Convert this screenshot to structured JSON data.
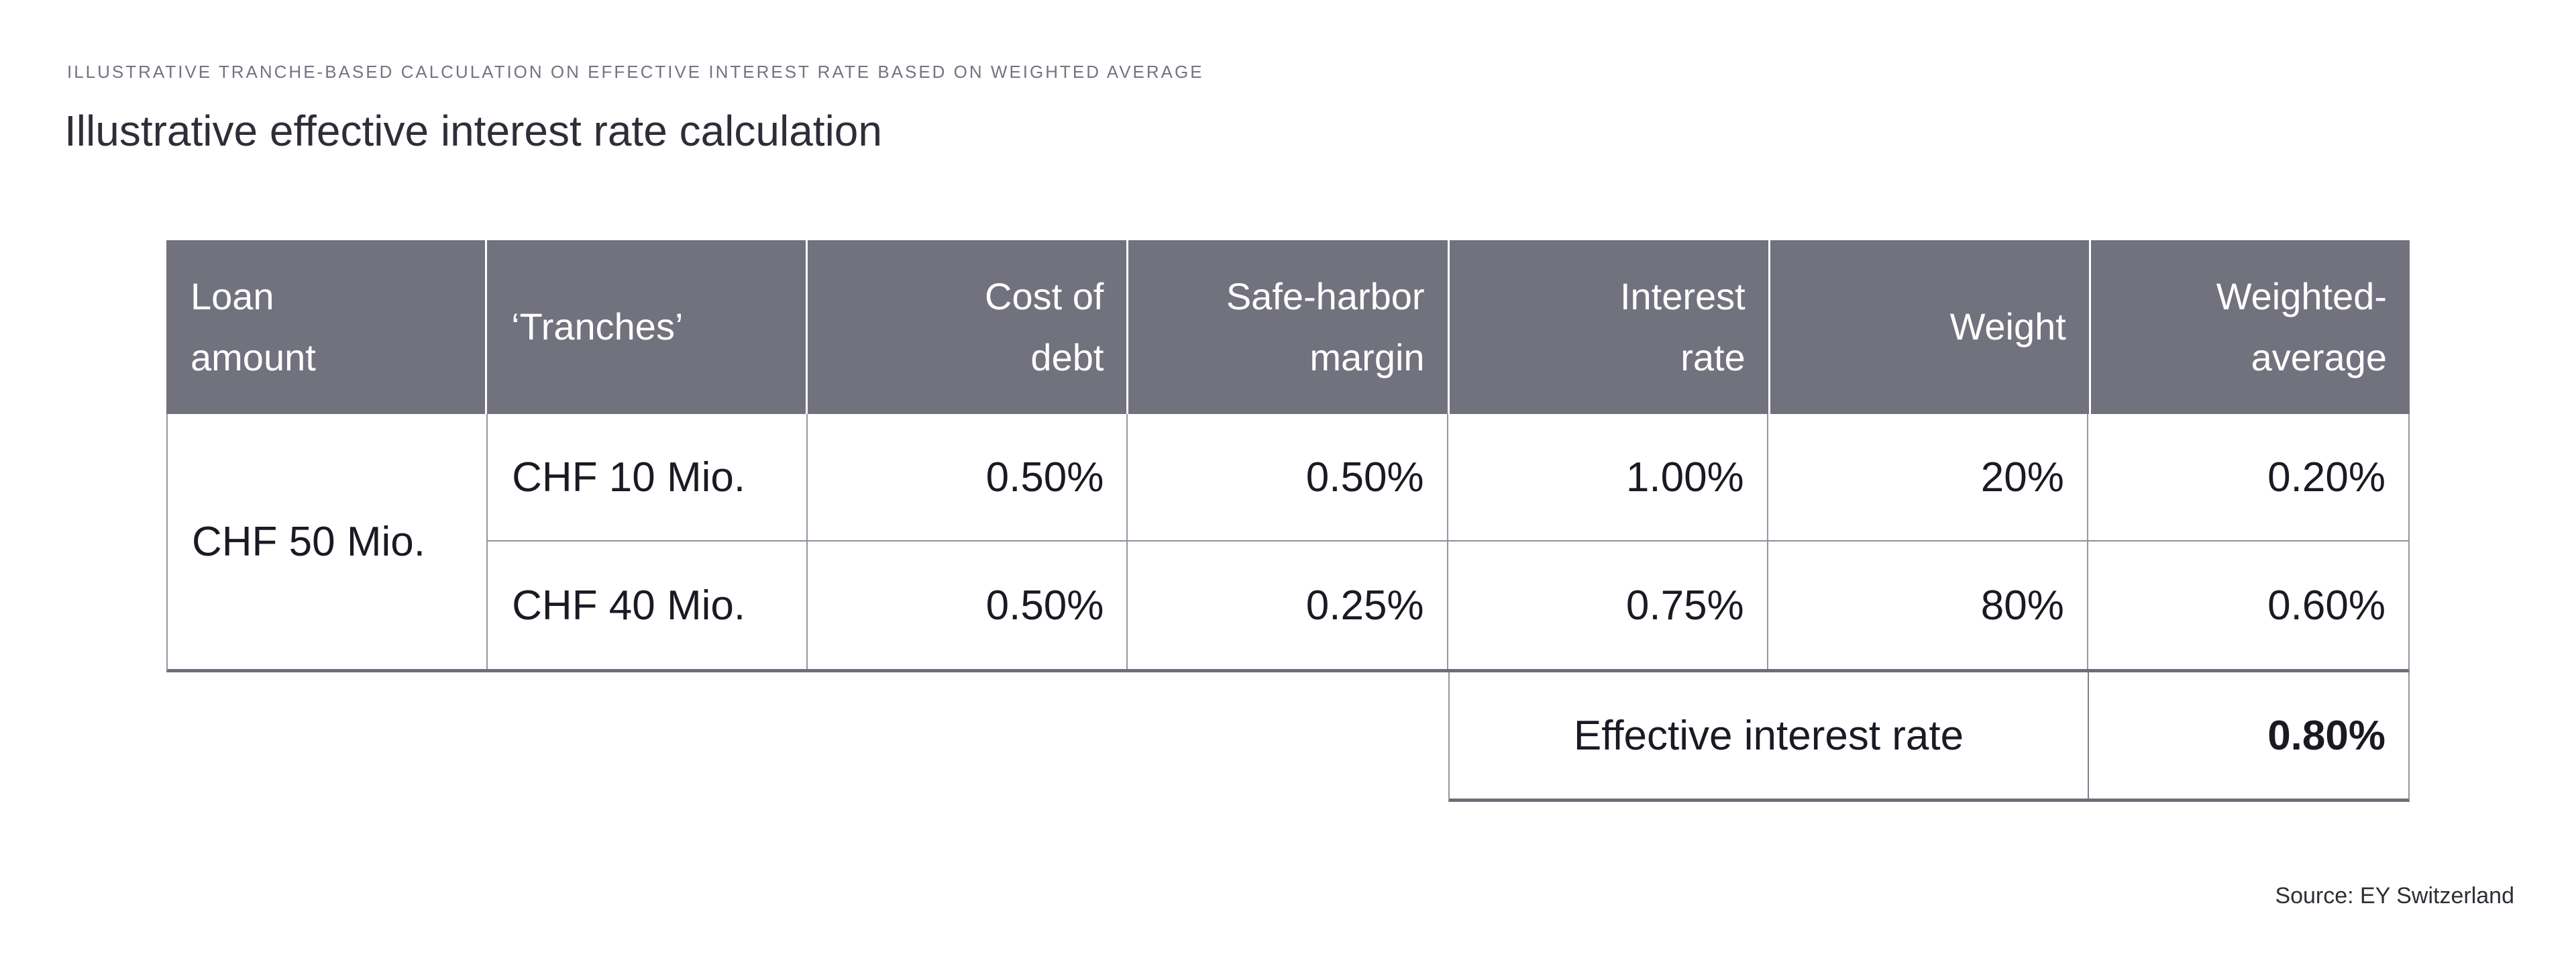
{
  "header_note": "ILLUSTRATIVE TRANCHE-BASED CALCULATION ON EFFECTIVE INTEREST RATE BASED ON WEIGHTED AVERAGE",
  "title": "Illustrative effective interest rate calculation",
  "source": "Source: EY Switzerland",
  "colors": {
    "header_bg": "#72727f",
    "header_text": "#ffffff",
    "body_text": "#1a1a24",
    "title_text": "#2e2e38",
    "eyebrow_text": "#747480",
    "border_thin": "#9595a0",
    "border_thick": "#6e6e7a"
  },
  "table": {
    "columns": [
      {
        "label": "Loan\namount",
        "align": "left"
      },
      {
        "label": "‘Tranches’",
        "align": "left"
      },
      {
        "label": "Cost of\ndebt",
        "align": "right"
      },
      {
        "label": "Safe-harbor\nmargin",
        "align": "right"
      },
      {
        "label": "Interest\nrate",
        "align": "right"
      },
      {
        "label": "Weight",
        "align": "right"
      },
      {
        "label": "Weighted-\naverage",
        "align": "right"
      }
    ],
    "loan_amount": "CHF 50 Mio.",
    "rows": [
      {
        "tranche": "CHF 10 Mio.",
        "cost_of_debt": "0.50%",
        "safe_harbor_margin": "0.50%",
        "interest_rate": "1.00%",
        "weight": "20%",
        "weighted_average": "0.20%"
      },
      {
        "tranche": "CHF 40 Mio.",
        "cost_of_debt": "0.50%",
        "safe_harbor_margin": "0.25%",
        "interest_rate": "0.75%",
        "weight": "80%",
        "weighted_average": "0.60%"
      }
    ],
    "summary_label": "Effective interest rate",
    "summary_value": "0.80%"
  },
  "chart_data": {
    "type": "table",
    "title": "Illustrative effective interest rate calculation",
    "subtitle": "ILLUSTRATIVE TRANCHE-BASED CALCULATION ON EFFECTIVE INTEREST RATE BASED ON WEIGHTED AVERAGE",
    "columns": [
      "Loan amount",
      "Tranches",
      "Cost of debt",
      "Safe-harbor margin",
      "Interest rate",
      "Weight",
      "Weighted-average"
    ],
    "rows": [
      [
        "CHF 50 Mio.",
        "CHF 10 Mio.",
        "0.50%",
        "0.50%",
        "1.00%",
        "20%",
        "0.20%"
      ],
      [
        "CHF 50 Mio.",
        "CHF 40 Mio.",
        "0.50%",
        "0.25%",
        "0.75%",
        "80%",
        "0.60%"
      ]
    ],
    "notes": "Loan amount cell CHF 50 Mio. is merged across both tranche rows",
    "summary": {
      "label": "Effective interest rate",
      "value": "0.80%"
    },
    "source": "Source: EY Switzerland"
  }
}
